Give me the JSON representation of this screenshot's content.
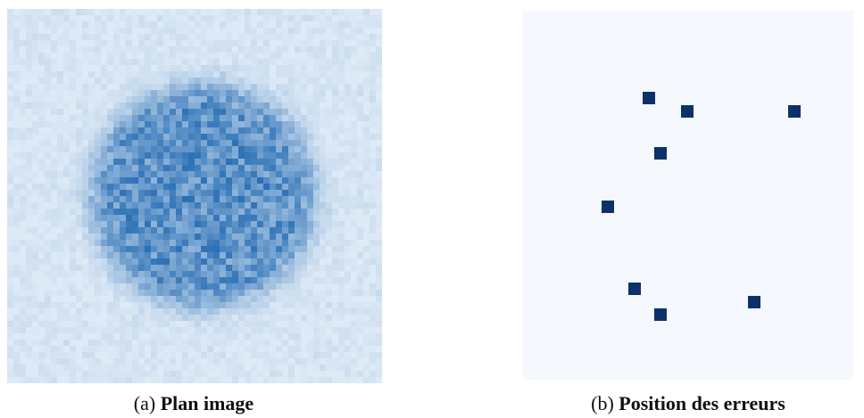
{
  "figures": [
    {
      "label": "(a)",
      "caption": "Plan image"
    },
    {
      "label": "(b)",
      "caption": "Position des erreurs"
    }
  ]
}
